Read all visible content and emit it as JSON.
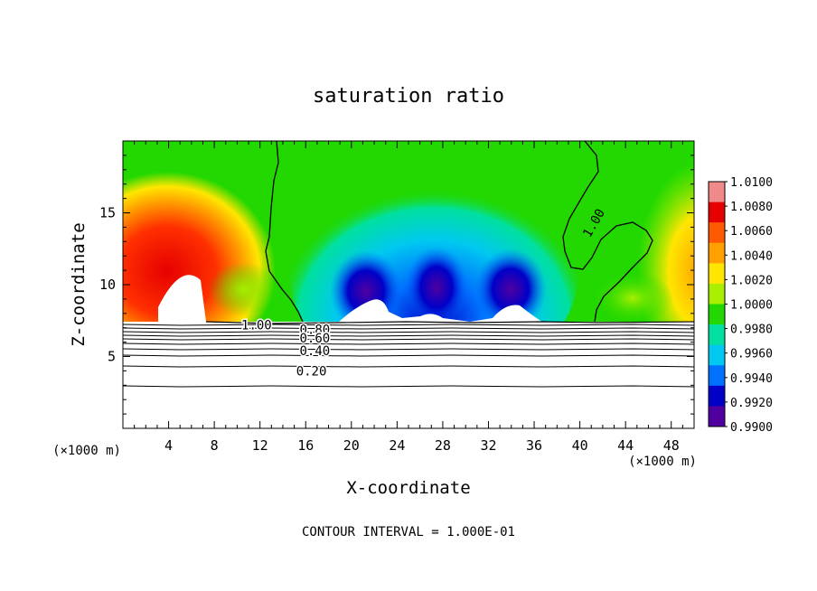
{
  "chart_data": {
    "type": "heatmap",
    "title": "saturation ratio",
    "xlabel": "X-coordinate",
    "ylabel": "Z-coordinate",
    "x_unit": "(×1000 m)",
    "footer": "CONTOUR INTERVAL = 1.000E-01",
    "xlim": [
      0,
      50
    ],
    "ylim": [
      0,
      20
    ],
    "x_ticks": [
      4,
      8,
      12,
      16,
      20,
      24,
      28,
      32,
      36,
      40,
      44,
      48
    ],
    "y_ticks": [
      5,
      10,
      15
    ],
    "colorbar": {
      "min": 0.99,
      "max": 1.01,
      "labels": [
        "1.0100",
        "1.0080",
        "1.0060",
        "1.0040",
        "1.0020",
        "1.0000",
        "0.9980",
        "0.9960",
        "0.9940",
        "0.9920",
        "0.9900"
      ],
      "colors": [
        "#f08a8a",
        "#e60000",
        "#ff5a00",
        "#ffa000",
        "#ffe600",
        "#a8f000",
        "#22d800",
        "#00e0a0",
        "#00c8f0",
        "#0070ff",
        "#0000c8",
        "#5000a0"
      ]
    },
    "contour_labels": [
      {
        "text": "1.00",
        "x": 11.7,
        "y": 7.2
      },
      {
        "text": "1.00",
        "x": 41.2,
        "y": 14.3
      },
      {
        "text": "0.80",
        "x": 16.8,
        "y": 6.9
      },
      {
        "text": "0.60",
        "x": 16.8,
        "y": 6.3
      },
      {
        "text": "0.40",
        "x": 16.8,
        "y": 5.4
      },
      {
        "text": "0.20",
        "x": 16.5,
        "y": 4.0
      }
    ]
  }
}
